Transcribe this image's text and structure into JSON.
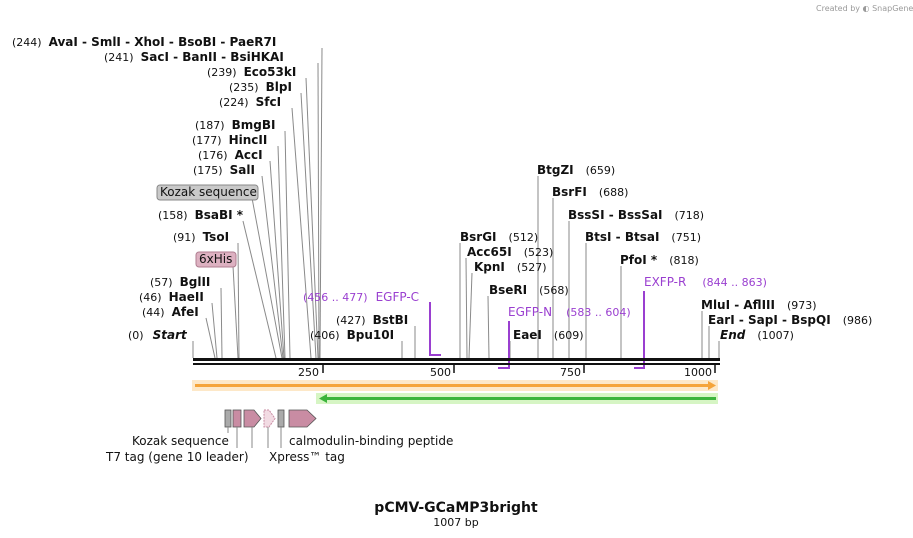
{
  "title": "pCMV-GCaMP3bright",
  "length_label": "1007 bp",
  "brand": "Created by ◐ SnapGene",
  "sites": [
    {
      "pos": "(244)",
      "text": "AvaI   - SmlI   - XhoI   - BsoBI   - PaeR7I"
    },
    {
      "pos": "(241)",
      "text": "SacI   - BanII   - BsiHKAI"
    },
    {
      "pos": "(239)",
      "text": "Eco53kI"
    },
    {
      "pos": "(235)",
      "text": "BlpI"
    },
    {
      "pos": "(224)",
      "text": "SfcI"
    },
    {
      "pos": "(187)",
      "text": "BmgBI"
    },
    {
      "pos": "(177)",
      "text": "HincII"
    },
    {
      "pos": "(176)",
      "text": "AccI"
    },
    {
      "pos": "(175)",
      "text": "SalI"
    },
    {
      "pos": "(158)",
      "text": "BsaBI *"
    },
    {
      "pos": "(91)",
      "text": "TsoI"
    },
    {
      "pos": "(57)",
      "text": "BglII"
    },
    {
      "pos": "(46)",
      "text": "HaeII"
    },
    {
      "pos": "(44)",
      "text": "AfeI"
    },
    {
      "pos": "(0)",
      "text": "Start"
    },
    {
      "pos": "(406)",
      "text": "Bpu10I"
    },
    {
      "pos": "(427)",
      "text": "BstBI"
    },
    {
      "pos": "(512)",
      "text": "BsrGI"
    },
    {
      "pos": "(523)",
      "text": "Acc65I"
    },
    {
      "pos": "(527)",
      "text": "KpnI"
    },
    {
      "pos": "(568)",
      "text": "BseRI"
    },
    {
      "pos": "(609)",
      "text": "EaeI"
    },
    {
      "pos": "(659)",
      "text": "BtgZI"
    },
    {
      "pos": "(688)",
      "text": "BsrFI"
    },
    {
      "pos": "(718)",
      "text": "BssSI   - BssSaI"
    },
    {
      "pos": "(751)",
      "text": "BtsI   - BtsaI"
    },
    {
      "pos": "(818)",
      "text": "PfoI *"
    },
    {
      "pos": "(973)",
      "text": "MluI   - AflIII"
    },
    {
      "pos": "(986)",
      "text": "EarI   - SapI   - BspQI"
    },
    {
      "pos": "(1007)",
      "text": "End"
    }
  ],
  "features": {
    "kozak_box": "Kozak sequence",
    "his_box": "6xHis",
    "kozak": "Kozak sequence",
    "t7": "T7 tag (gene 10 leader)",
    "calmodulin": "calmodulin-binding peptide",
    "xpress": "Xpress™ tag"
  },
  "primers": [
    {
      "name": "EGFP-C",
      "range": "(456 .. 477)"
    },
    {
      "name": "EGFP-N",
      "range": "(583 .. 604)"
    },
    {
      "name": "EXFP-R",
      "range": "(844 .. 863)"
    }
  ],
  "ticks": [
    "250",
    "500",
    "750",
    "1000"
  ],
  "colors": {
    "site_line": "#8a8a8a",
    "primer": "#9a3fd0",
    "orange_arrow": "#f5a43a",
    "green_arrow": "#3cb43c",
    "feature": "#c98ca3"
  }
}
